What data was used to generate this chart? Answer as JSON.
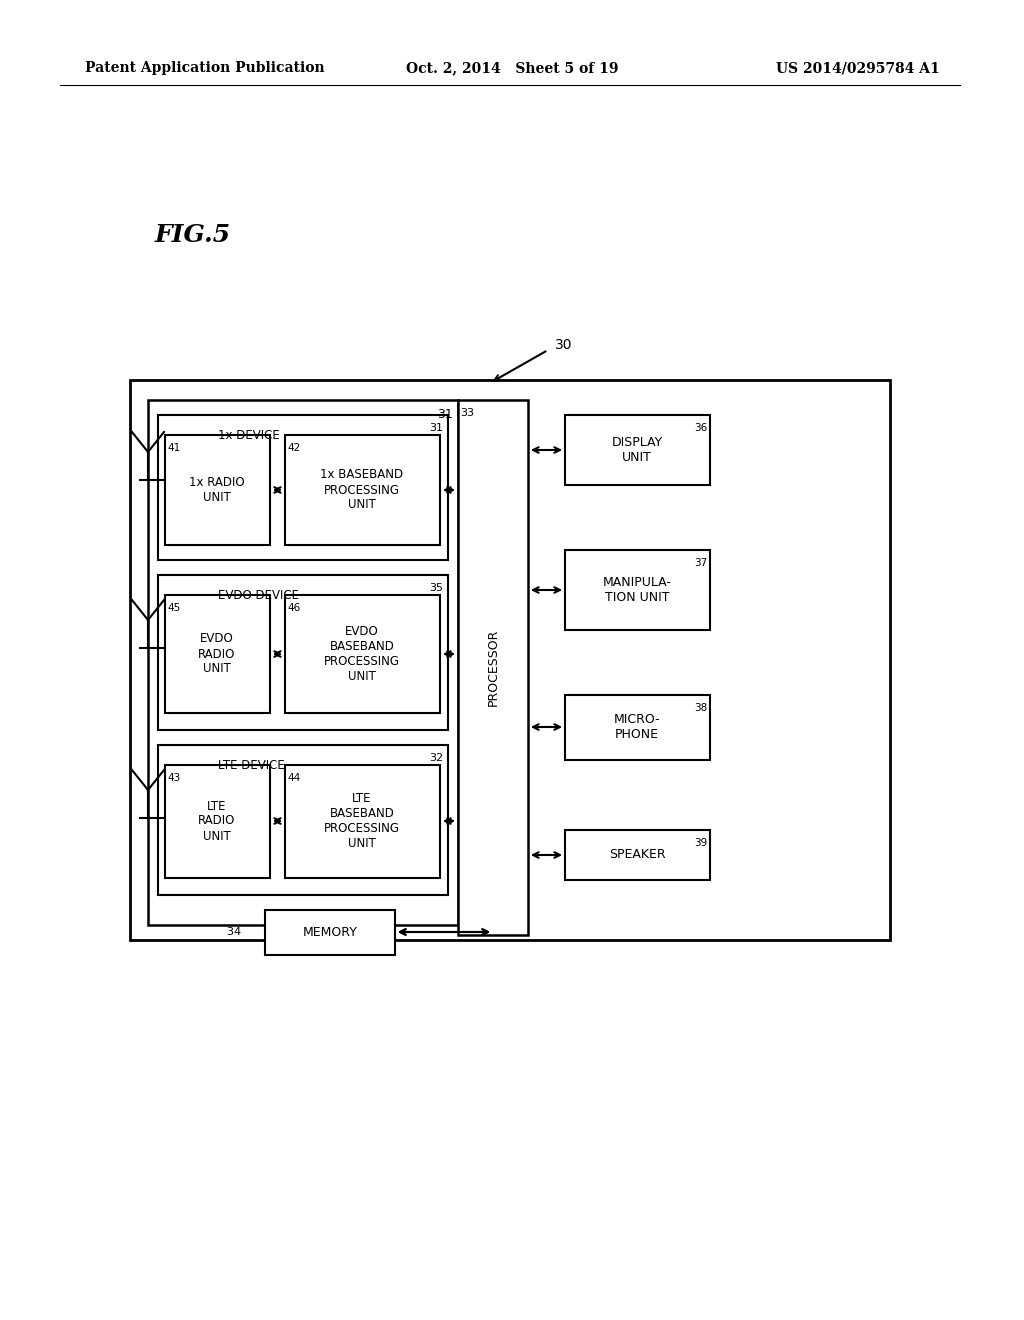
{
  "bg_color": "#ffffff",
  "header_left": "Patent Application Publication",
  "header_mid": "Oct. 2, 2014   Sheet 5 of 19",
  "header_right": "US 2014/0295784 A1",
  "fig_label": "FIG.5",
  "node_30": "30",
  "node_31": "31",
  "node_32": "32",
  "node_33": "33",
  "node_34": "34",
  "node_35": "35",
  "node_36": "36",
  "node_37": "37",
  "node_38": "38",
  "node_39": "39",
  "node_41": "41",
  "node_42": "42",
  "node_43": "43",
  "node_44": "44",
  "node_45": "45",
  "node_46": "46",
  "label_1x_device": "1x DEVICE",
  "label_evdo_device": "EVDO DEVICE",
  "label_lte_device": "LTE DEVICE",
  "label_1x_radio": "1x RADIO\nUNIT",
  "label_1x_baseband": "1x BASEBAND\nPROCESSING\nUNIT",
  "label_evdo_radio": "EVDO\nRADIO\nUNIT",
  "label_evdo_baseband": "EVDO\nBASEBAND\nPROCESSING\nUNIT",
  "label_lte_radio": "LTE\nRADIO\nUNIT",
  "label_lte_baseband": "LTE\nBASEBAND\nPROCESSING\nUNIT",
  "label_processor": "PROCESSOR",
  "label_memory": "MEMORY",
  "label_display": "DISPLAY\nUNIT",
  "label_manipulation": "MANIPULA-\nTION UNIT",
  "label_microphone": "MICRO-\nPHONE",
  "label_speaker": "SPEAKER"
}
